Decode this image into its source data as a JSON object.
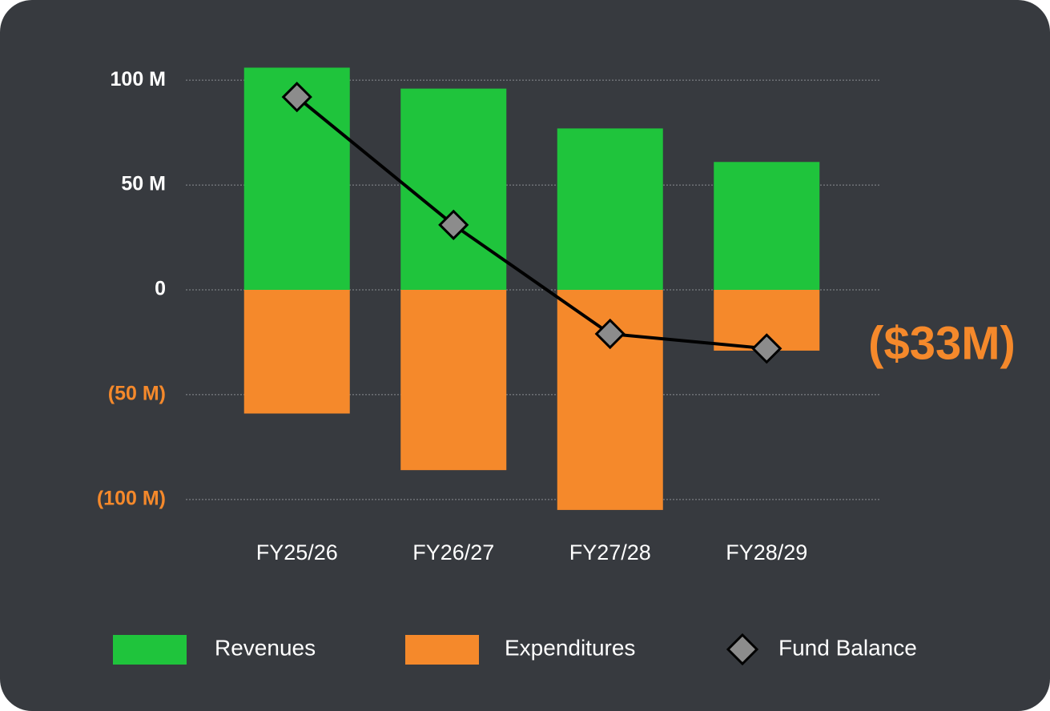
{
  "chart_data": {
    "type": "bar-line",
    "categories": [
      "FY25/26",
      "FY26/27",
      "FY27/28",
      "FY28/29"
    ],
    "series": [
      {
        "name": "Revenues",
        "color": "#1fc43c",
        "type": "bar",
        "values": [
          106,
          96,
          77,
          61
        ]
      },
      {
        "name": "Expenditures",
        "color": "#f5892b",
        "type": "bar",
        "values": [
          -59,
          -86,
          -105,
          -29
        ]
      },
      {
        "name": "Fund Balance",
        "color": "#8c8c8c",
        "type": "line",
        "values": [
          92,
          31,
          -21,
          -28
        ]
      }
    ],
    "ylim": [
      -110,
      110
    ],
    "yticks": [
      {
        "value": -100,
        "label": "(100 M)"
      },
      {
        "value": -50,
        "label": "(50 M)"
      },
      0,
      {
        "value": 50,
        "label": "50 M"
      },
      {
        "value": 100,
        "label": "100 M"
      }
    ],
    "grid": true,
    "legend": "bottom",
    "annotation": "($33M)"
  }
}
